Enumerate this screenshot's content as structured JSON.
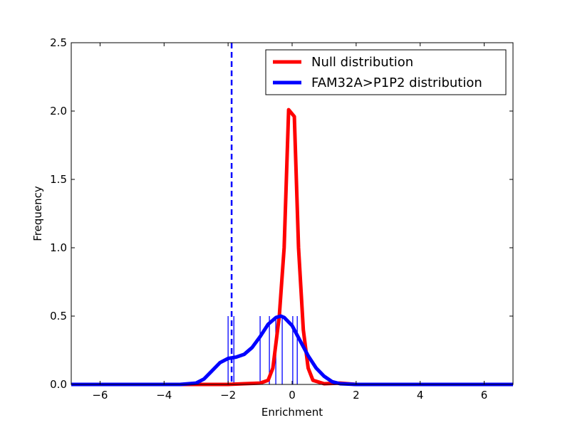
{
  "chart_data": {
    "type": "line",
    "title": "",
    "xlabel": "Enrichment",
    "ylabel": "Frequency",
    "xlim": [
      -6.9,
      6.9
    ],
    "ylim": [
      0,
      2.5
    ],
    "xticks": [
      -6,
      -4,
      -2,
      0,
      2,
      4,
      6
    ],
    "xtick_labels": [
      "−6",
      "−4",
      "−2",
      "0",
      "2",
      "4",
      "6"
    ],
    "yticks": [
      0,
      0.5,
      1.0,
      1.5,
      2.0,
      2.5
    ],
    "ytick_labels": [
      "0.0",
      "0.5",
      "1.0",
      "1.5",
      "2.0",
      "2.5"
    ],
    "legend_placement": "top-right",
    "series": [
      {
        "name": "Null distribution",
        "color": "#ff0000",
        "x": [
          -6.9,
          -2,
          -1.5,
          -1.0,
          -0.75,
          -0.6,
          -0.4,
          -0.25,
          -0.11,
          0.07,
          0.2,
          0.35,
          0.5,
          0.65,
          1.0,
          1.5,
          2,
          6.9
        ],
        "y": [
          0,
          0,
          0.005,
          0.01,
          0.03,
          0.12,
          0.5,
          1.0,
          2.01,
          1.96,
          1.0,
          0.4,
          0.12,
          0.03,
          0.005,
          0.01,
          0,
          0
        ]
      },
      {
        "name": "FAM32A>P1P2 distribution",
        "color": "#0000ff",
        "x": [
          -6.9,
          -3.5,
          -3,
          -2.75,
          -2.5,
          -2.25,
          -2,
          -1.75,
          -1.5,
          -1.25,
          -1,
          -0.75,
          -0.5,
          -0.35,
          -0.25,
          0,
          0.25,
          0.5,
          0.75,
          1,
          1.25,
          1.5,
          2,
          6.9
        ],
        "y": [
          0,
          0,
          0.01,
          0.04,
          0.1,
          0.16,
          0.19,
          0.2,
          0.22,
          0.27,
          0.35,
          0.44,
          0.49,
          0.5,
          0.49,
          0.43,
          0.32,
          0.21,
          0.12,
          0.06,
          0.02,
          0.005,
          0,
          0
        ]
      }
    ],
    "rug": {
      "color": "#0000ff",
      "height": 0.5,
      "x": [
        -2.0,
        -1.82,
        -1.0,
        -0.71,
        -0.51,
        -0.31,
        0.02,
        0.16
      ]
    },
    "vline": {
      "x": -1.89,
      "color": "#0000ff",
      "style": "dashed"
    }
  }
}
